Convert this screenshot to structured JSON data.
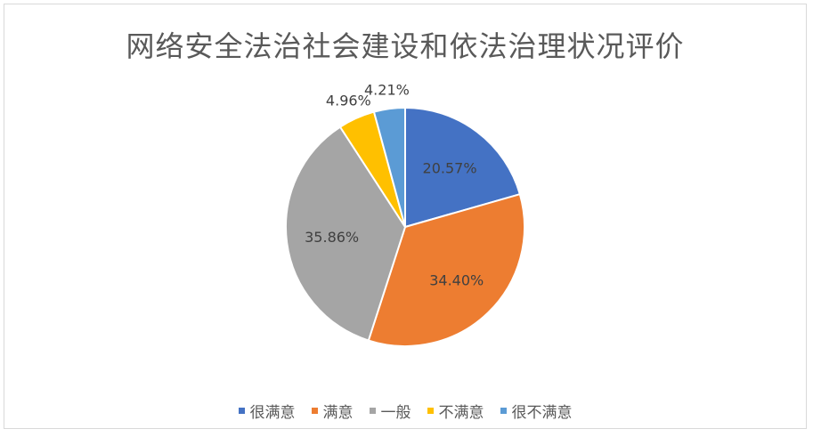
{
  "chart_data": {
    "type": "pie",
    "title": "网络安全法治社会建设和依法治理状况评价",
    "categories": [
      "很满意",
      "满意",
      "一般",
      "不满意",
      "很不满意"
    ],
    "values": [
      20.57,
      34.4,
      35.86,
      4.96,
      4.21
    ],
    "labels": [
      "20.57%",
      "34.40%",
      "35.86%",
      "4.96%",
      "4.21%"
    ],
    "colors": [
      "#4472c4",
      "#ed7d31",
      "#a5a5a5",
      "#ffc000",
      "#5b9bd5"
    ],
    "legend_position": "bottom"
  }
}
